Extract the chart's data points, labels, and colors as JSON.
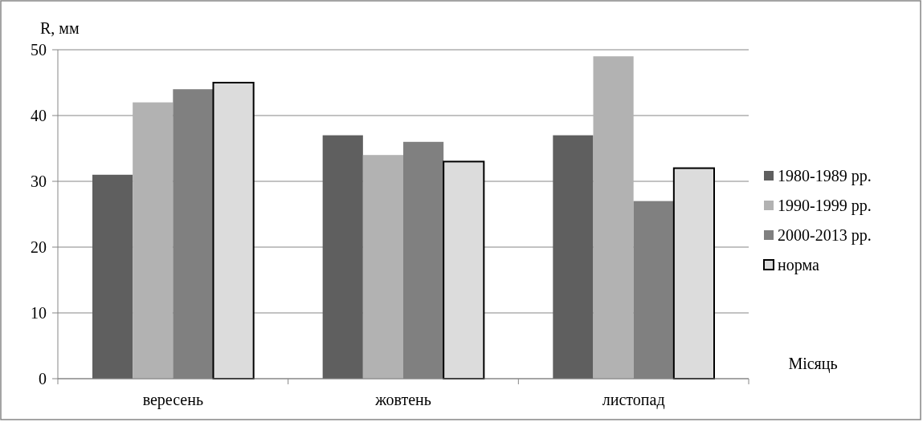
{
  "chart_data": {
    "type": "bar",
    "ylabel": "R, мм",
    "xlabel": "Місяць",
    "categories": [
      "вересень",
      "жовтень",
      "листопад"
    ],
    "series": [
      {
        "name": "1980-1989 рр.",
        "color": "#5f5f5f",
        "values": [
          31,
          37,
          37
        ]
      },
      {
        "name": "1990-1999 рр.",
        "color": "#b2b2b2",
        "values": [
          42,
          34,
          49
        ]
      },
      {
        "name": "2000-2013 рр.",
        "color": "#808080",
        "values": [
          44,
          36,
          27
        ]
      },
      {
        "name": "норма",
        "color": "#dcdcdc",
        "values": [
          45,
          33,
          32
        ]
      }
    ],
    "ylim": [
      0,
      50
    ],
    "yticks": [
      0,
      10,
      20,
      30,
      40,
      50
    ],
    "grid": "y",
    "legend": "right"
  }
}
